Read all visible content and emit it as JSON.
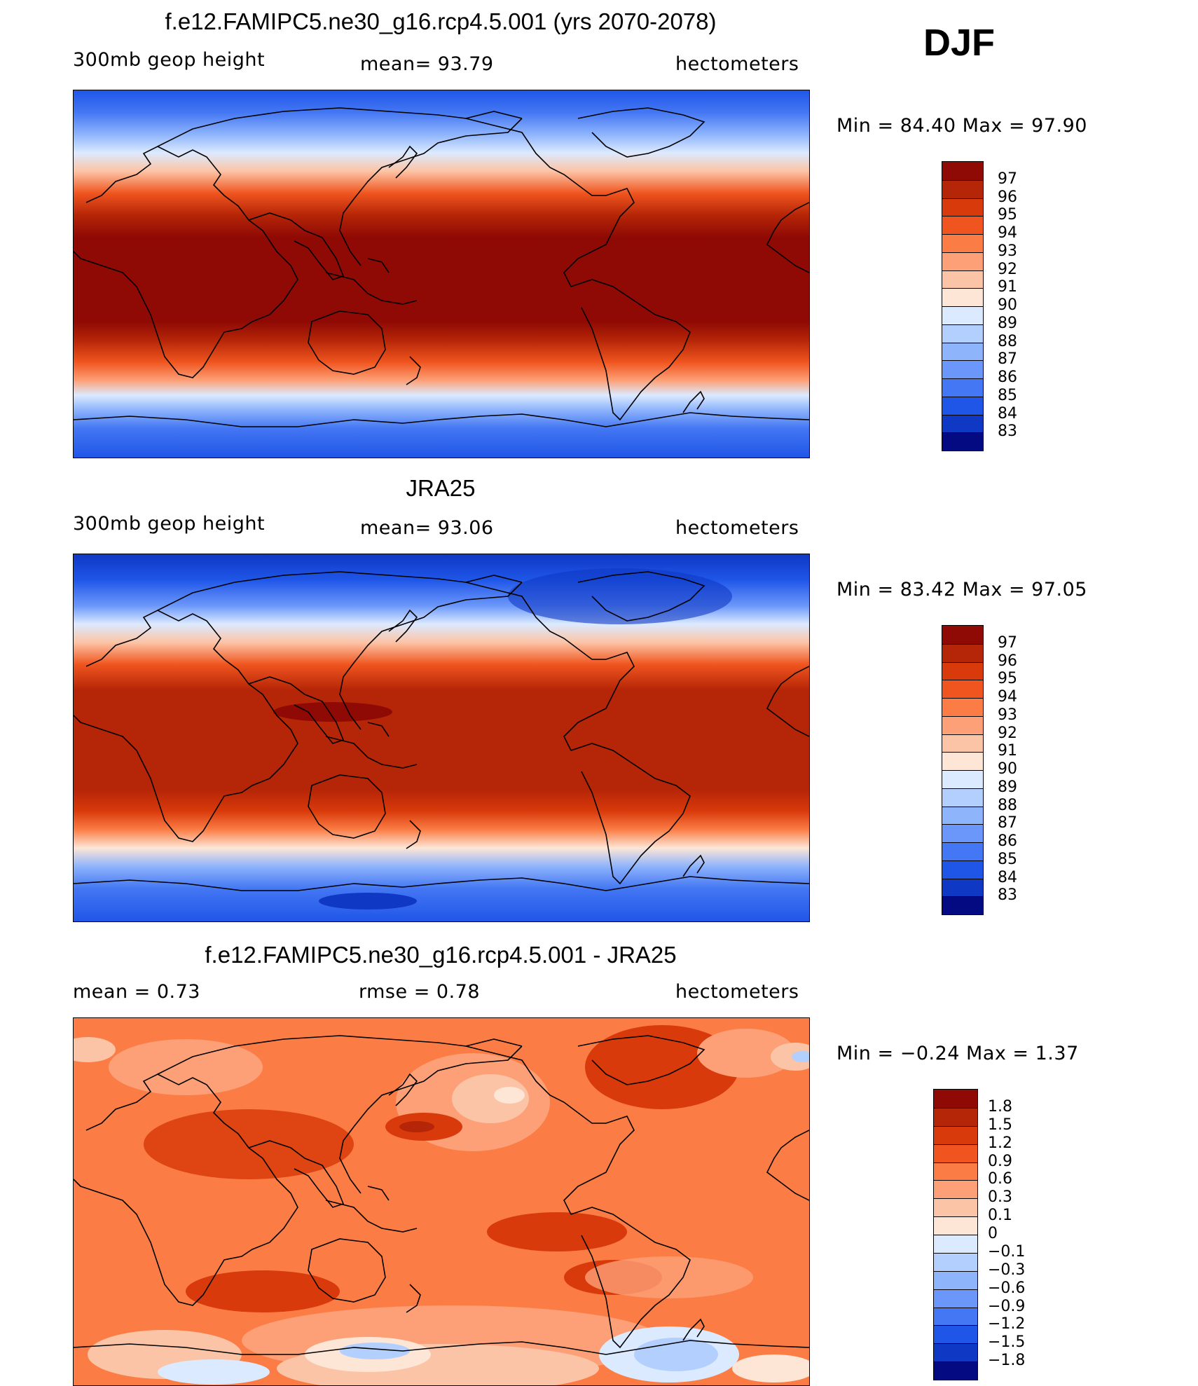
{
  "season": "DJF",
  "panels": [
    {
      "id": "model",
      "title": "f.e12.FAMIPC5.ne30_g16.rcp4.5.001 (yrs 2070-2078)",
      "left_label": "300mb  geop  height",
      "center_label": "mean=   93.79",
      "right_label": "hectometers",
      "min_max": "Min  =   84.40  Max  =   97.90",
      "colorbar_levels": [
        "97",
        "96",
        "95",
        "94",
        "93",
        "92",
        "91",
        "90",
        "89",
        "88",
        "87",
        "86",
        "85",
        "84",
        "83"
      ],
      "colorbar_colors": [
        "#8f0a05",
        "#b52507",
        "#d93a0b",
        "#f0551f",
        "#fb7d45",
        "#fda077",
        "#fcc4a6",
        "#fde6d6",
        "#dceaff",
        "#b3cffd",
        "#8eb4fc",
        "#6b97fa",
        "#4477f3",
        "#1f56e8",
        "#0f38c4",
        "#030a82"
      ]
    },
    {
      "id": "obs",
      "title": "JRA25",
      "left_label": "300mb  geop  height",
      "center_label": "mean=   93.06",
      "right_label": "hectometers",
      "min_max": "Min  =   83.42  Max  =   97.05",
      "colorbar_levels": [
        "97",
        "96",
        "95",
        "94",
        "93",
        "92",
        "91",
        "90",
        "89",
        "88",
        "87",
        "86",
        "85",
        "84",
        "83"
      ],
      "colorbar_colors": [
        "#8f0a05",
        "#b52507",
        "#d93a0b",
        "#f0551f",
        "#fb7d45",
        "#fda077",
        "#fcc4a6",
        "#fde6d6",
        "#dceaff",
        "#b3cffd",
        "#8eb4fc",
        "#6b97fa",
        "#4477f3",
        "#1f56e8",
        "#0f38c4",
        "#030a82"
      ]
    },
    {
      "id": "diff",
      "title": "f.e12.FAMIPC5.ne30_g16.rcp4.5.001 - JRA25",
      "left_label": "mean  =     0.73",
      "center_label": "rmse  =     0.78",
      "right_label": "hectometers",
      "min_max": "Min  =   −0.24  Max  =     1.37",
      "colorbar_levels": [
        "1.8",
        "1.5",
        "1.2",
        "0.9",
        "0.6",
        "0.3",
        "0.1",
        "0",
        "−0.1",
        "−0.3",
        "−0.6",
        "−0.9",
        "−1.2",
        "−1.5",
        "−1.8"
      ],
      "colorbar_colors": [
        "#8f0a05",
        "#b52507",
        "#d93a0b",
        "#f0551f",
        "#fb7d45",
        "#fda077",
        "#fcc4a6",
        "#fde6d6",
        "#dceaff",
        "#b3cffd",
        "#8eb4fc",
        "#6b97fa",
        "#4477f3",
        "#1f56e8",
        "#0f38c4",
        "#030a82"
      ]
    }
  ]
}
